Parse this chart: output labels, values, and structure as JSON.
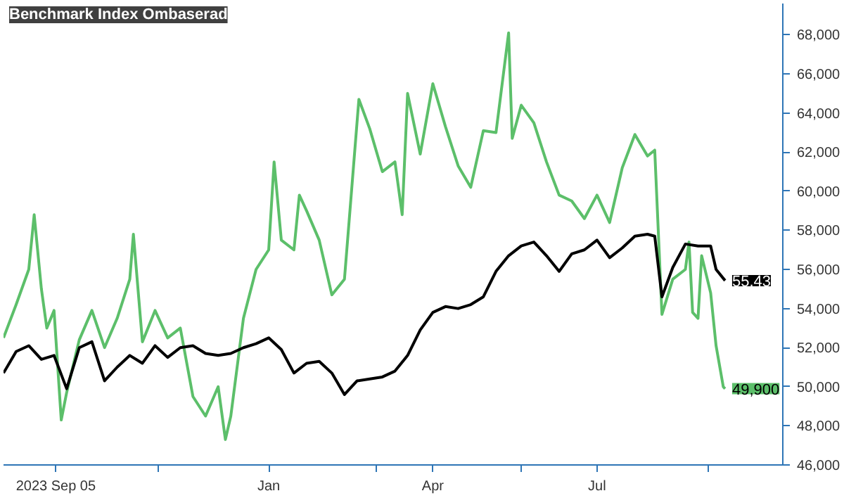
{
  "chart_data": {
    "type": "line",
    "legend": "top left",
    "xlim": [
      "2023-08-07",
      "2024-10-12"
    ],
    "ylim": [
      46000,
      69600
    ],
    "xticks": [
      {
        "value": "2023-09-05",
        "label": "2023 Sep 05"
      },
      {
        "value": "2023-11-01",
        "label": null
      },
      {
        "value": "2024-01-01",
        "label": "Jan"
      },
      {
        "value": "2024-03-01",
        "label": null
      },
      {
        "value": "2024-04-01",
        "label": "Apr"
      },
      {
        "value": "2024-05-20",
        "label": null
      },
      {
        "value": "2024-07-01",
        "label": "Jul"
      },
      {
        "value": "2024-09-01",
        "label": null
      }
    ],
    "yticks": [
      {
        "value": 46000,
        "label": "46,000"
      },
      {
        "value": 48000,
        "label": "48,000"
      },
      {
        "value": 50000,
        "label": "50,000"
      },
      {
        "value": 52000,
        "label": "52,000"
      },
      {
        "value": 54000,
        "label": "54,000"
      },
      {
        "value": 56000,
        "label": "56,000"
      },
      {
        "value": 58000,
        "label": "58,000"
      },
      {
        "value": 60000,
        "label": "60,000"
      },
      {
        "value": 62000,
        "label": "62,000"
      },
      {
        "value": 64000,
        "label": "64,000"
      },
      {
        "value": 66000,
        "label": "66,000"
      },
      {
        "value": 68000,
        "label": "68,000"
      }
    ],
    "series": [
      {
        "color": "#5cbf6a",
        "x": [
          "2023-08-07",
          "2023-08-14",
          "2023-08-21",
          "2023-08-24",
          "2023-08-28",
          "2023-08-31",
          "2023-09-04",
          "2023-09-08",
          "2023-09-11",
          "2023-09-18",
          "2023-09-25",
          "2023-10-02",
          "2023-10-09",
          "2023-10-16",
          "2023-10-18",
          "2023-10-23",
          "2023-10-30",
          "2023-11-06",
          "2023-11-13",
          "2023-11-20",
          "2023-11-27",
          "2023-12-04",
          "2023-12-08",
          "2023-12-11",
          "2023-12-18",
          "2023-12-25",
          "2024-01-01",
          "2024-01-04",
          "2024-01-08",
          "2024-01-15",
          "2024-01-18",
          "2024-01-22",
          "2024-01-29",
          "2024-02-05",
          "2024-02-12",
          "2024-02-20",
          "2024-02-26",
          "2024-03-04",
          "2024-03-11",
          "2024-03-15",
          "2024-03-18",
          "2024-03-25",
          "2024-04-01",
          "2024-04-08",
          "2024-04-15",
          "2024-04-22",
          "2024-04-29",
          "2024-05-06",
          "2024-05-13",
          "2024-05-15",
          "2024-05-20",
          "2024-05-27",
          "2024-06-03",
          "2024-06-10",
          "2024-06-17",
          "2024-06-24",
          "2024-07-01",
          "2024-07-08",
          "2024-07-15",
          "2024-07-22",
          "2024-07-29",
          "2024-08-02",
          "2024-08-06",
          "2024-08-12",
          "2024-08-19",
          "2024-08-21",
          "2024-08-23",
          "2024-08-26",
          "2024-08-28",
          "2024-09-02",
          "2024-09-05",
          "2024-09-09",
          "2024-09-10"
        ],
        "values": [
          52500,
          54200,
          56000,
          58800,
          55000,
          53000,
          53900,
          48300,
          49700,
          52400,
          53900,
          52000,
          53500,
          55500,
          57800,
          52300,
          53900,
          52500,
          53000,
          49500,
          48500,
          50000,
          47300,
          48500,
          53500,
          56000,
          57000,
          61500,
          57500,
          57000,
          59800,
          59000,
          57500,
          54700,
          55500,
          64700,
          63200,
          61000,
          61500,
          58800,
          65000,
          61900,
          65500,
          63300,
          61300,
          60200,
          63100,
          63000,
          68100,
          62700,
          64400,
          63500,
          61500,
          59800,
          59500,
          58600,
          59800,
          58400,
          61200,
          62900,
          61800,
          62100,
          53700,
          55500,
          56000,
          57400,
          53800,
          53500,
          56700,
          54800,
          52100,
          50000,
          49900
        ]
      },
      {
        "name": "Benchmark Index Ombaserad",
        "color": "#000000",
        "x": [
          "2023-08-07",
          "2023-08-14",
          "2023-08-21",
          "2023-08-28",
          "2023-09-04",
          "2023-09-11",
          "2023-09-18",
          "2023-09-25",
          "2023-10-02",
          "2023-10-09",
          "2023-10-16",
          "2023-10-23",
          "2023-10-30",
          "2023-11-06",
          "2023-11-13",
          "2023-11-20",
          "2023-11-27",
          "2023-12-04",
          "2023-12-11",
          "2023-12-18",
          "2023-12-25",
          "2024-01-01",
          "2024-01-08",
          "2024-01-15",
          "2024-01-22",
          "2024-01-29",
          "2024-02-05",
          "2024-02-12",
          "2024-02-19",
          "2024-02-26",
          "2024-03-04",
          "2024-03-11",
          "2024-03-18",
          "2024-03-25",
          "2024-04-01",
          "2024-04-08",
          "2024-04-15",
          "2024-04-22",
          "2024-04-29",
          "2024-05-06",
          "2024-05-13",
          "2024-05-20",
          "2024-05-27",
          "2024-06-03",
          "2024-06-10",
          "2024-06-17",
          "2024-06-24",
          "2024-07-01",
          "2024-07-08",
          "2024-07-15",
          "2024-07-22",
          "2024-07-29",
          "2024-08-02",
          "2024-08-06",
          "2024-08-12",
          "2024-08-19",
          "2024-08-26",
          "2024-09-02",
          "2024-09-05",
          "2024-09-10"
        ],
        "values": [
          50700,
          51800,
          52100,
          51400,
          51600,
          49900,
          52000,
          52300,
          50300,
          51000,
          51600,
          51200,
          52100,
          51500,
          52000,
          52100,
          51700,
          51600,
          51700,
          52000,
          52200,
          52500,
          51900,
          50700,
          51200,
          51300,
          50700,
          49600,
          50300,
          50400,
          50500,
          50800,
          51600,
          52900,
          53800,
          54100,
          54000,
          54200,
          54600,
          55900,
          56700,
          57200,
          57400,
          56700,
          55900,
          56800,
          57000,
          57500,
          56600,
          57100,
          57700,
          57800,
          57700,
          54600,
          56100,
          57300,
          57200,
          57200,
          56000,
          55430
        ]
      }
    ],
    "annotations": [
      {
        "text": "55,43",
        "x": "2024-09-10",
        "y": 55430
      },
      {
        "text": "49,900",
        "x": "2024-09-10",
        "y": 49900
      }
    ]
  }
}
